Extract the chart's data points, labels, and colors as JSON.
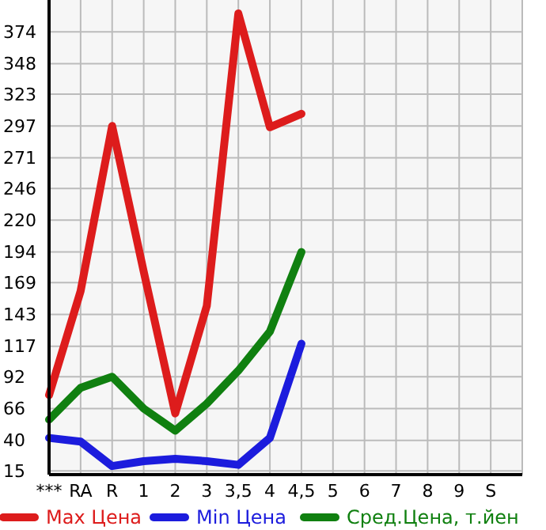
{
  "chart_data": {
    "type": "line",
    "categories": [
      "***",
      "RA",
      "R",
      "1",
      "2",
      "3",
      "3,5",
      "4",
      "4,5",
      "5",
      "6",
      "7",
      "8",
      "9",
      "S"
    ],
    "series": [
      {
        "name": "Max Цена",
        "color": "#dd1c1c",
        "values": [
          77,
          162,
          297,
          178,
          62,
          150,
          389,
          296,
          307,
          null,
          null,
          null,
          null,
          null,
          null
        ]
      },
      {
        "name": "Min Цена",
        "color": "#1c1cdd",
        "values": [
          42,
          39,
          19,
          23,
          25,
          23,
          20,
          42,
          119,
          null,
          null,
          null,
          null,
          null,
          null
        ]
      },
      {
        "name": "Сред.Цена, т.йен",
        "color": "#108010",
        "values": [
          57,
          83,
          92,
          66,
          48,
          70,
          97,
          129,
          194,
          null,
          null,
          null,
          null,
          null,
          null
        ]
      }
    ],
    "ylim": [
      12,
      400
    ],
    "yticks": [
      15,
      40,
      66,
      92,
      117,
      143,
      169,
      194,
      220,
      246,
      271,
      297,
      323,
      348,
      374
    ],
    "grid": true,
    "legend": "bottom",
    "marker": "none"
  }
}
